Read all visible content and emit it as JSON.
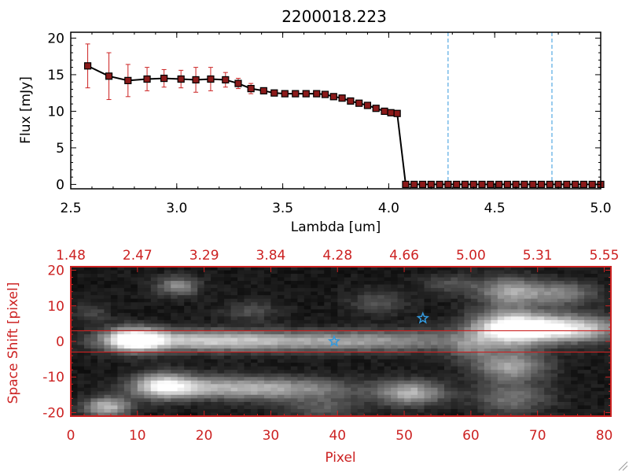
{
  "colors": {
    "red": "#cc2222",
    "black": "#000000",
    "blue": "#3399dd",
    "marker": "#8b1a1a"
  },
  "chart_data": [
    {
      "type": "line",
      "title": "2200018.223",
      "xlabel": "Lambda [um]",
      "ylabel": "Flux [mJy]",
      "xlim": [
        2.5,
        5.0
      ],
      "ylim": [
        -0.6,
        20.8
      ],
      "x_ticks": [
        2.5,
        3.0,
        3.5,
        4.0,
        4.5,
        5.0
      ],
      "x_tick_labels": [
        "2.5",
        "3.0",
        "3.5",
        "4.0",
        "4.5",
        "5.0"
      ],
      "y_ticks": [
        0,
        5,
        10,
        15,
        20
      ],
      "y_tick_labels": [
        "0",
        "5",
        "10",
        "15",
        "20"
      ],
      "vlines": [
        4.28,
        4.77
      ],
      "series": [
        {
          "name": "flux",
          "x": [
            2.58,
            2.68,
            2.77,
            2.86,
            2.94,
            3.02,
            3.09,
            3.16,
            3.23,
            3.29,
            3.35,
            3.41,
            3.46,
            3.51,
            3.56,
            3.61,
            3.66,
            3.7,
            3.74,
            3.78,
            3.82,
            3.86,
            3.9,
            3.94,
            3.98,
            4.01,
            4.04,
            4.08,
            4.12,
            4.16,
            4.2,
            4.24,
            4.28,
            4.32,
            4.36,
            4.4,
            4.44,
            4.48,
            4.52,
            4.56,
            4.6,
            4.64,
            4.68,
            4.72,
            4.76,
            4.8,
            4.84,
            4.88,
            4.92,
            4.96,
            5.0
          ],
          "y": [
            16.2,
            14.8,
            14.2,
            14.4,
            14.5,
            14.4,
            14.3,
            14.4,
            14.3,
            13.8,
            13.1,
            12.8,
            12.5,
            12.4,
            12.4,
            12.4,
            12.4,
            12.3,
            12.0,
            11.8,
            11.4,
            11.1,
            10.8,
            10.4,
            10.0,
            9.8,
            9.7,
            0,
            0,
            0,
            0,
            0,
            0,
            0,
            0,
            0,
            0,
            0,
            0,
            0,
            0,
            0,
            0,
            0,
            0,
            0,
            0,
            0,
            0,
            0,
            0
          ],
          "yerr": [
            3.0,
            3.2,
            2.2,
            1.6,
            1.2,
            1.2,
            1.7,
            1.6,
            1.0,
            0.7,
            0.7,
            0.3,
            0.3,
            0.2,
            0.2,
            0.2,
            0.3,
            0.3,
            0.3,
            0.3,
            0.3,
            0.3,
            0.3,
            0.3,
            0.3,
            0.3,
            0.3,
            0,
            0,
            0,
            0,
            0,
            0,
            0,
            0,
            0,
            0,
            0,
            0,
            0,
            0,
            0,
            0,
            0,
            0,
            0,
            0,
            0,
            0,
            0,
            0
          ]
        }
      ]
    },
    {
      "type": "heatmap",
      "xlabel": "Pixel",
      "ylabel": "Space Shift [pixel]",
      "xlim": [
        0,
        81
      ],
      "ylim": [
        -21,
        21
      ],
      "x_ticks": [
        0,
        10,
        20,
        30,
        40,
        50,
        60,
        70,
        80
      ],
      "x_tick_labels": [
        "0",
        "10",
        "20",
        "30",
        "40",
        "50",
        "60",
        "70",
        "80"
      ],
      "y_ticks": [
        -20,
        -10,
        0,
        10,
        20
      ],
      "y_tick_labels": [
        "-20",
        "-10",
        "0",
        "10",
        "20"
      ],
      "top_ticks": [
        0,
        10,
        20,
        30,
        40,
        50,
        60,
        70,
        80
      ],
      "top_tick_labels": [
        "1.48",
        "2.47",
        "3.29",
        "3.84",
        "4.28",
        "4.66",
        "5.00",
        "5.31",
        "5.55"
      ],
      "hlines": [
        3,
        -3
      ],
      "stars": [
        {
          "x": 39.5,
          "y": 0
        },
        {
          "x": 52.8,
          "y": 6.5
        }
      ],
      "blobs": [
        {
          "x": 9.5,
          "y": 0.5,
          "amp": 0.95,
          "sx": 3.0,
          "sy": 2.3
        },
        {
          "x": 18,
          "y": 0.3,
          "amp": 0.55,
          "sx": 9,
          "sy": 2.1
        },
        {
          "x": 34,
          "y": 0.0,
          "amp": 0.42,
          "sx": 11,
          "sy": 2.0
        },
        {
          "x": 50,
          "y": 0.3,
          "amp": 0.32,
          "sx": 9,
          "sy": 2.2
        },
        {
          "x": 66,
          "y": 3.8,
          "amp": 1.0,
          "sx": 4.2,
          "sy": 3.2
        },
        {
          "x": 75,
          "y": 3.6,
          "amp": 0.8,
          "sx": 5.2,
          "sy": 2.6
        },
        {
          "x": 66,
          "y": -7,
          "amp": 0.55,
          "sx": 3.8,
          "sy": 3.0
        },
        {
          "x": 66,
          "y": 14,
          "amp": 0.55,
          "sx": 3.5,
          "sy": 2.8
        },
        {
          "x": 74,
          "y": 13.5,
          "amp": 0.4,
          "sx": 3.5,
          "sy": 2.3
        },
        {
          "x": 66,
          "y": -16,
          "amp": 0.35,
          "sx": 4,
          "sy": 3
        },
        {
          "x": 14,
          "y": -12.5,
          "amp": 0.75,
          "sx": 3.2,
          "sy": 2.5
        },
        {
          "x": 22,
          "y": -13,
          "amp": 0.5,
          "sx": 7,
          "sy": 2.2
        },
        {
          "x": 34,
          "y": -13.5,
          "amp": 0.4,
          "sx": 7,
          "sy": 2.3
        },
        {
          "x": 51,
          "y": -14.5,
          "amp": 0.6,
          "sx": 3.5,
          "sy": 2.4
        },
        {
          "x": 5.5,
          "y": -18.5,
          "amp": 0.65,
          "sx": 2.5,
          "sy": 2.0
        },
        {
          "x": 16,
          "y": 15.5,
          "amp": 0.45,
          "sx": 2.2,
          "sy": 1.9
        },
        {
          "x": 27,
          "y": 8.5,
          "amp": 0.2,
          "sx": 3,
          "sy": 2
        },
        {
          "x": 46,
          "y": 11,
          "amp": 0.22,
          "sx": 3,
          "sy": 2.5
        },
        {
          "x": 57,
          "y": 16,
          "amp": 0.22,
          "sx": 3,
          "sy": 2
        },
        {
          "x": 3,
          "y": 8,
          "amp": 0.18,
          "sx": 2,
          "sy": 2
        },
        {
          "x": 38,
          "y": -19,
          "amp": 0.25,
          "sx": 4,
          "sy": 2
        },
        {
          "x": 60,
          "y": -2,
          "amp": 0.25,
          "sx": 2.5,
          "sy": 2.5
        }
      ]
    }
  ]
}
